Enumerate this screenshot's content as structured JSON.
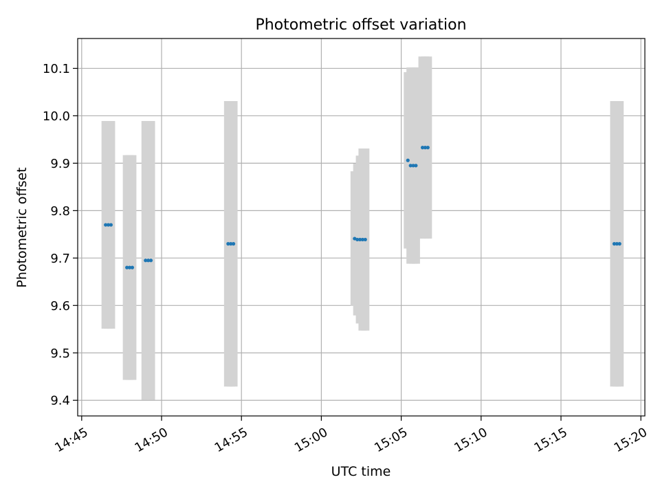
{
  "chart_data": {
    "type": "scatter",
    "title": "Photometric offset variation",
    "xlabel": "UTC time",
    "ylabel": "Photometric offset",
    "xlim": [
      "14:44:45",
      "15:20:15"
    ],
    "ylim": [
      9.367,
      10.163
    ],
    "grid": true,
    "x_ticks": [
      "14:45",
      "14:50",
      "14:55",
      "15:00",
      "15:05",
      "15:10",
      "15:15",
      "15:20"
    ],
    "y_ticks": [
      "9.4",
      "9.5",
      "9.6",
      "9.7",
      "9.8",
      "9.9",
      "10.0",
      "10.1"
    ],
    "colors": {
      "points": "#1f77b4",
      "error_bars": "#d3d3d3",
      "grid": "#b0b0b0"
    },
    "series": [
      {
        "points": [
          {
            "x": "14:46:30",
            "y": 9.77,
            "err": 0.219
          },
          {
            "x": "14:46:40",
            "y": 9.77,
            "err": 0.219
          },
          {
            "x": "14:46:50",
            "y": 9.77,
            "err": 0.219
          },
          {
            "x": "14:47:50",
            "y": 9.68,
            "err": 0.237
          },
          {
            "x": "14:48:00",
            "y": 9.68,
            "err": 0.237
          },
          {
            "x": "14:48:10",
            "y": 9.68,
            "err": 0.237
          },
          {
            "x": "14:49:00",
            "y": 9.695,
            "err": 0.294
          },
          {
            "x": "14:49:10",
            "y": 9.695,
            "err": 0.294
          },
          {
            "x": "14:49:20",
            "y": 9.695,
            "err": 0.294
          },
          {
            "x": "14:54:10",
            "y": 9.73,
            "err": 0.301
          },
          {
            "x": "14:54:20",
            "y": 9.73,
            "err": 0.301
          },
          {
            "x": "14:54:30",
            "y": 9.73,
            "err": 0.301
          },
          {
            "x": "15:02:05",
            "y": 9.741,
            "err": 0.142
          },
          {
            "x": "15:02:15",
            "y": 9.739,
            "err": 0.16
          },
          {
            "x": "15:02:25",
            "y": 9.739,
            "err": 0.177
          },
          {
            "x": "15:02:35",
            "y": 9.739,
            "err": 0.192
          },
          {
            "x": "15:02:45",
            "y": 9.739,
            "err": 0.192
          },
          {
            "x": "15:05:25",
            "y": 9.906,
            "err": 0.186
          },
          {
            "x": "15:05:35",
            "y": 9.895,
            "err": 0.207
          },
          {
            "x": "15:05:45",
            "y": 9.895,
            "err": 0.207
          },
          {
            "x": "15:05:55",
            "y": 9.895,
            "err": 0.207
          },
          {
            "x": "15:06:20",
            "y": 9.933,
            "err": 0.192
          },
          {
            "x": "15:06:30",
            "y": 9.933,
            "err": 0.192
          },
          {
            "x": "15:06:40",
            "y": 9.933,
            "err": 0.192
          },
          {
            "x": "15:18:20",
            "y": 9.73,
            "err": 0.301
          },
          {
            "x": "15:18:30",
            "y": 9.73,
            "err": 0.301
          },
          {
            "x": "15:18:40",
            "y": 9.73,
            "err": 0.301
          }
        ]
      }
    ]
  }
}
